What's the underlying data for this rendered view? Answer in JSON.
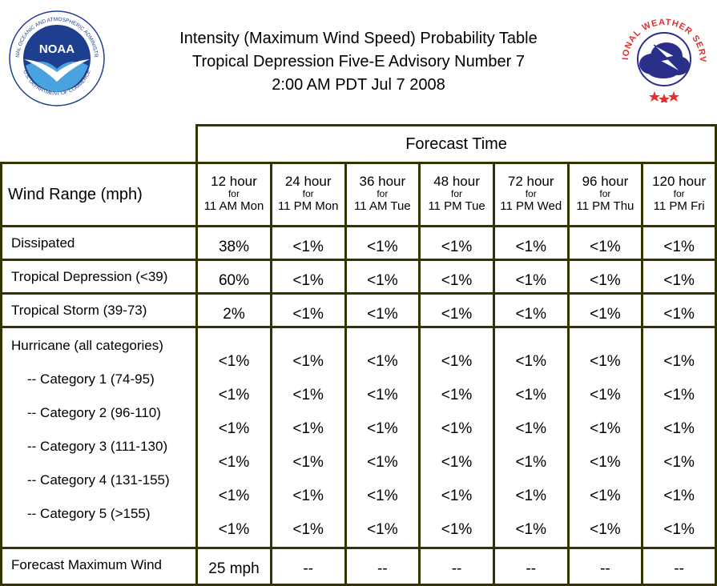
{
  "header": {
    "title_line1": "Intensity (Maximum Wind Speed) Probability Table",
    "title_line2": "Tropical Depression Five-E Advisory Number 7",
    "title_line3": "2:00 AM PDT Jul 7 2008"
  },
  "logos": {
    "left_icon": "noaa-logo",
    "left_text_arc": "NATIONAL OCEANIC AND ATMOSPHERIC ADMINISTRATION",
    "left_text_bottom": "U.S. DEPARTMENT OF COMMERCE",
    "left_center_text": "NOAA",
    "right_icon": "national-weather-service-logo",
    "right_text_arc": "NATIONAL WEATHER SERVICE",
    "colors": {
      "noaa_blue": "#1e3f8f",
      "nws_red": "#e03030",
      "nws_blue": "#2a2f8a"
    }
  },
  "chart_data": {
    "type": "table",
    "column_group_header": "Forecast Time",
    "row_header_label": "Wind Range (mph)",
    "columns": [
      {
        "hour": "12 hour",
        "for": "for",
        "time": "11 AM Mon"
      },
      {
        "hour": "24 hour",
        "for": "for",
        "time": "11 PM Mon"
      },
      {
        "hour": "36 hour",
        "for": "for",
        "time": "11 AM Tue"
      },
      {
        "hour": "48 hour",
        "for": "for",
        "time": "11 PM Tue"
      },
      {
        "hour": "72 hour",
        "for": "for",
        "time": "11 PM Wed"
      },
      {
        "hour": "96 hour",
        "for": "for",
        "time": "11 PM Thu"
      },
      {
        "hour": "120 hour",
        "for": "for",
        "time": "11 PM Fri"
      }
    ],
    "rows": [
      {
        "label": "Dissipated",
        "values": [
          "38%",
          "<1%",
          "<1%",
          "<1%",
          "<1%",
          "<1%",
          "<1%"
        ]
      },
      {
        "label": "Tropical Depression (<39)",
        "values": [
          "60%",
          "<1%",
          "<1%",
          "<1%",
          "<1%",
          "<1%",
          "<1%"
        ]
      },
      {
        "label": "Tropical Storm (39-73)",
        "values": [
          "2%",
          "<1%",
          "<1%",
          "<1%",
          "<1%",
          "<1%",
          "<1%"
        ]
      }
    ],
    "hurricane_group": {
      "label": "Hurricane (all categories)",
      "values": [
        "<1%",
        "<1%",
        "<1%",
        "<1%",
        "<1%",
        "<1%",
        "<1%"
      ],
      "subrows": [
        {
          "label": "-- Category 1 (74-95)",
          "values": [
            "<1%",
            "<1%",
            "<1%",
            "<1%",
            "<1%",
            "<1%",
            "<1%"
          ]
        },
        {
          "label": "-- Category 2 (96-110)",
          "values": [
            "<1%",
            "<1%",
            "<1%",
            "<1%",
            "<1%",
            "<1%",
            "<1%"
          ]
        },
        {
          "label": "-- Category 3 (111-130)",
          "values": [
            "<1%",
            "<1%",
            "<1%",
            "<1%",
            "<1%",
            "<1%",
            "<1%"
          ]
        },
        {
          "label": "-- Category 4 (131-155)",
          "values": [
            "<1%",
            "<1%",
            "<1%",
            "<1%",
            "<1%",
            "<1%",
            "<1%"
          ]
        },
        {
          "label": "-- Category 5 (>155)",
          "values": [
            "<1%",
            "<1%",
            "<1%",
            "<1%",
            "<1%",
            "<1%",
            "<1%"
          ]
        }
      ]
    },
    "max_wind_row": {
      "label": "Forecast Maximum Wind",
      "values": [
        "25 mph",
        "--",
        "--",
        "--",
        "--",
        "--",
        "--"
      ]
    }
  }
}
